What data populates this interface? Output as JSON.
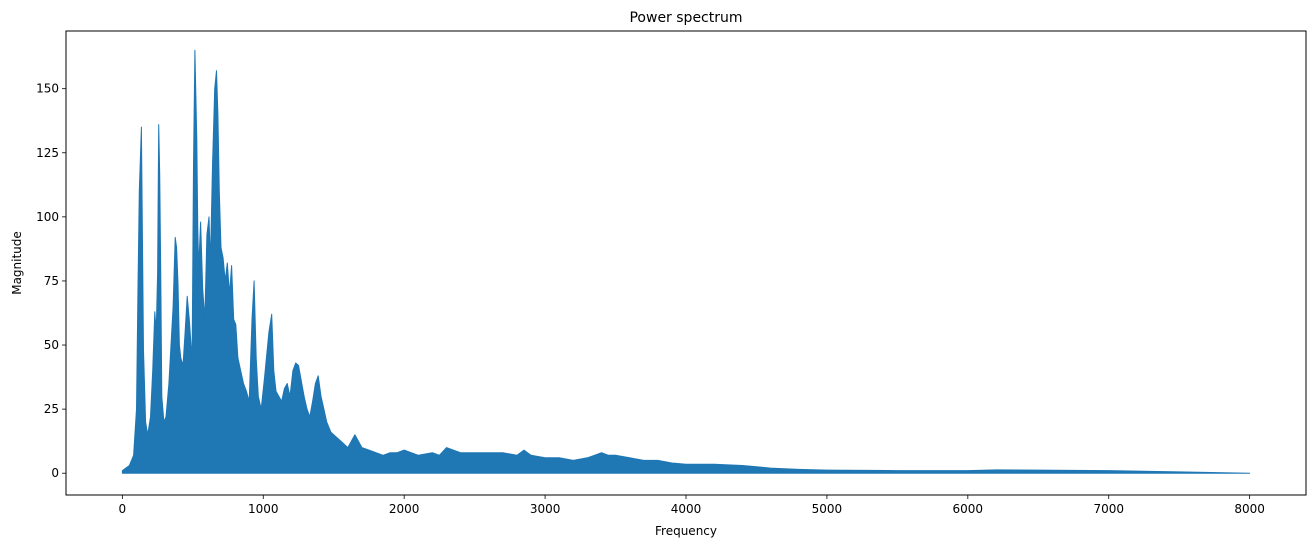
{
  "chart_data": {
    "type": "line",
    "title": "Power spectrum",
    "xlabel": "Frequency",
    "ylabel": "Magnitude",
    "xlim": [
      -400,
      8400
    ],
    "ylim": [
      -8.5,
      172.5
    ],
    "xticks": [
      0,
      1000,
      2000,
      3000,
      4000,
      5000,
      6000,
      7000,
      8000
    ],
    "yticks": [
      0,
      25,
      50,
      75,
      100,
      125,
      150
    ],
    "grid": false,
    "legend": "none",
    "color": "#1f77b4",
    "series": [
      {
        "x": [
          0,
          50,
          80,
          100,
          110,
          120,
          135,
          150,
          165,
          180,
          200,
          215,
          230,
          240,
          250,
          258,
          265,
          272,
          280,
          295,
          310,
          330,
          345,
          360,
          375,
          385,
          395,
          405,
          415,
          430,
          445,
          460,
          475,
          485,
          495,
          505,
          515,
          528,
          535,
          542,
          555,
          570,
          585,
          600,
          615,
          625,
          640,
          655,
          668,
          678,
          688,
          700,
          715,
          730,
          745,
          760,
          775,
          790,
          805,
          820,
          840,
          860,
          880,
          900,
          920,
          935,
          950,
          965,
          985,
          1010,
          1040,
          1060,
          1075,
          1090,
          1110,
          1130,
          1150,
          1170,
          1190,
          1210,
          1230,
          1250,
          1270,
          1290,
          1310,
          1330,
          1350,
          1370,
          1390,
          1410,
          1430,
          1450,
          1480,
          1520,
          1560,
          1600,
          1650,
          1700,
          1750,
          1800,
          1850,
          1900,
          1950,
          2000,
          2100,
          2200,
          2250,
          2300,
          2400,
          2500,
          2600,
          2700,
          2800,
          2850,
          2900,
          3000,
          3100,
          3200,
          3300,
          3350,
          3400,
          3450,
          3500,
          3600,
          3700,
          3800,
          3900,
          4000,
          4200,
          4400,
          4500,
          4600,
          4800,
          5000,
          5500,
          6000,
          6200,
          6500,
          7000,
          7500,
          8000
        ],
        "y": [
          1,
          3,
          7,
          25,
          70,
          110,
          135,
          48,
          20,
          15,
          22,
          40,
          63,
          55,
          78,
          136,
          117,
          80,
          30,
          20,
          22,
          35,
          50,
          65,
          92,
          88,
          74,
          50,
          45,
          42,
          55,
          69,
          60,
          52,
          44,
          120,
          165,
          130,
          95,
          80,
          98,
          72,
          60,
          93,
          100,
          82,
          120,
          150,
          157,
          140,
          110,
          88,
          84,
          75,
          82,
          70,
          81,
          60,
          58,
          45,
          40,
          35,
          32,
          28,
          60,
          75,
          45,
          30,
          25,
          38,
          55,
          62,
          40,
          32,
          30,
          28,
          33,
          35,
          30,
          40,
          43,
          42,
          36,
          30,
          25,
          22,
          28,
          35,
          38,
          30,
          25,
          20,
          16,
          14,
          12,
          10,
          15,
          10,
          9,
          8,
          7,
          8,
          8,
          9,
          7,
          8,
          7,
          10,
          8,
          8,
          8,
          8,
          7,
          9,
          7,
          6,
          6,
          5,
          6,
          7,
          8,
          7,
          7,
          6,
          5,
          5,
          4,
          3.5,
          3.5,
          3,
          2.5,
          2,
          1.5,
          1.2,
          1,
          1,
          1.3,
          1.2,
          1,
          0.5,
          0
        ]
      }
    ]
  }
}
